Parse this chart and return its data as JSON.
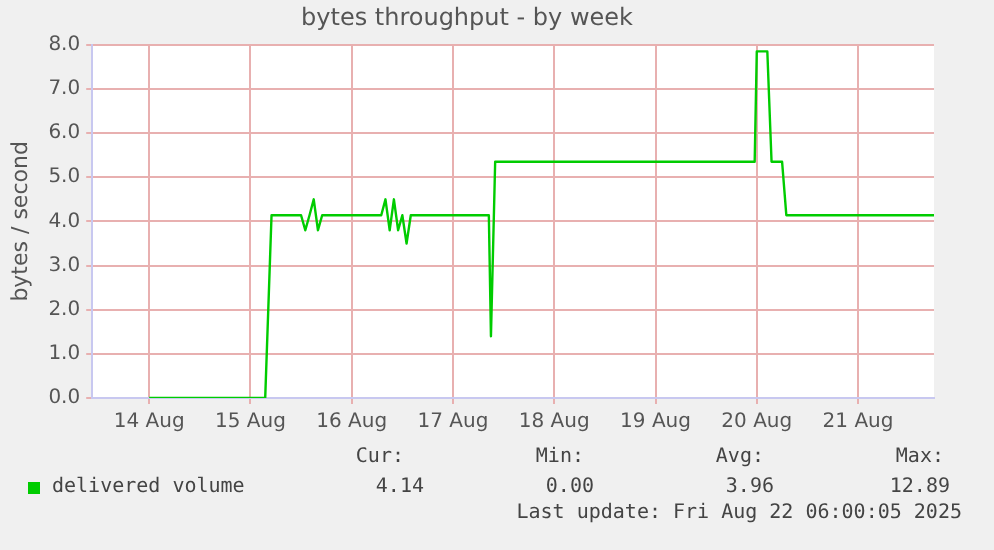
{
  "chart_data": {
    "type": "line",
    "title": "bytes throughput - by week",
    "ylabel": "bytes / second",
    "x": [
      "2025-08-14T12:00",
      "2025-08-15T15:30",
      "2025-08-15T17:00",
      "2025-08-16T00:00",
      "2025-08-16T01:00",
      "2025-08-16T02:00",
      "2025-08-16T03:00",
      "2025-08-16T04:00",
      "2025-08-16T05:00",
      "2025-08-16T19:00",
      "2025-08-16T20:00",
      "2025-08-16T21:00",
      "2025-08-16T22:00",
      "2025-08-16T23:00",
      "2025-08-17T00:00",
      "2025-08-17T01:00",
      "2025-08-17T02:00",
      "2025-08-17T20:30",
      "2025-08-17T21:00",
      "2025-08-17T22:00",
      "2025-08-20T11:30",
      "2025-08-20T12:00",
      "2025-08-20T14:30",
      "2025-08-20T15:30",
      "2025-08-20T18:00",
      "2025-08-20T19:00",
      "2025-08-22T06:00"
    ],
    "series": [
      {
        "name": "delivered volume",
        "color": "#00cc00",
        "values": [
          0,
          0,
          4.14,
          4.14,
          3.8,
          4.14,
          4.5,
          3.8,
          4.14,
          4.14,
          4.5,
          3.8,
          4.5,
          3.8,
          4.14,
          3.5,
          4.14,
          4.14,
          1.4,
          5.35,
          5.35,
          7.85,
          7.85,
          5.35,
          5.35,
          4.14,
          4.14
        ]
      }
    ],
    "xlim": [
      "2025-08-13T22:30",
      "2025-08-22T06:00"
    ],
    "xticks": [
      {
        "value": "2025-08-14T12:00",
        "label": "14 Aug"
      },
      {
        "value": "2025-08-15T12:00",
        "label": "15 Aug"
      },
      {
        "value": "2025-08-16T12:00",
        "label": "16 Aug"
      },
      {
        "value": "2025-08-17T12:00",
        "label": "17 Aug"
      },
      {
        "value": "2025-08-18T12:00",
        "label": "18 Aug"
      },
      {
        "value": "2025-08-19T12:00",
        "label": "19 Aug"
      },
      {
        "value": "2025-08-20T12:00",
        "label": "20 Aug"
      },
      {
        "value": "2025-08-21T12:00",
        "label": "21 Aug"
      }
    ],
    "ylim": [
      0,
      8
    ],
    "yticks": [
      {
        "value": 0,
        "label": "0.0"
      },
      {
        "value": 1,
        "label": "1.0"
      },
      {
        "value": 2,
        "label": "2.0"
      },
      {
        "value": 3,
        "label": "3.0"
      },
      {
        "value": 4,
        "label": "4.0"
      },
      {
        "value": 5,
        "label": "5.0"
      },
      {
        "value": 6,
        "label": "6.0"
      },
      {
        "value": 7,
        "label": "7.0"
      },
      {
        "value": 8,
        "label": "8.0"
      }
    ],
    "grid": true,
    "legend": "bottom left",
    "annotations": [
      "Cur:",
      "4.14",
      "Min:",
      "0.00",
      "Avg:",
      "3.96",
      "Max:",
      "12.89",
      "Last update: Fri Aug 22 06:00:05 2025"
    ]
  }
}
